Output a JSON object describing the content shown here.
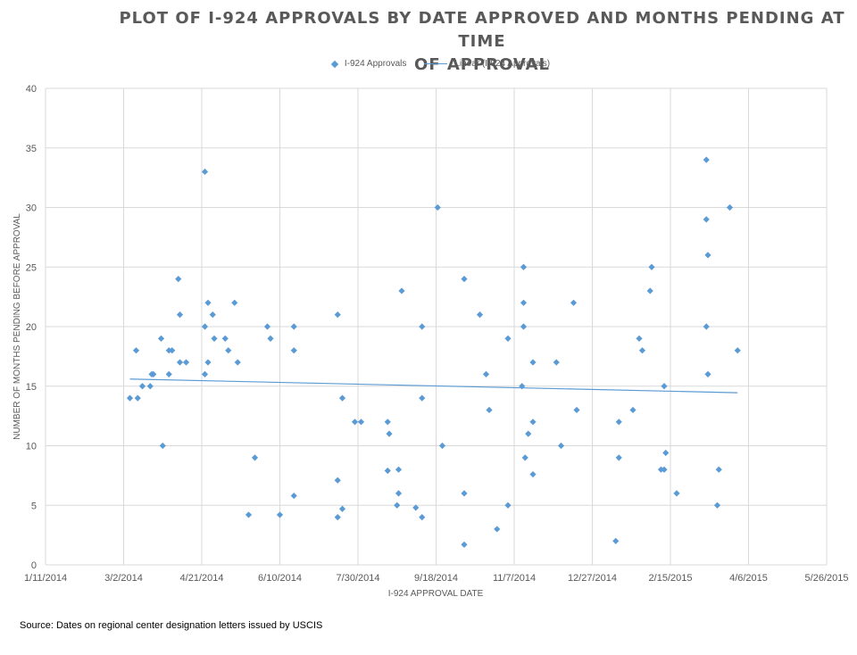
{
  "chart_data": {
    "type": "scatter",
    "title": "PLOT OF I-924 APPROVALS BY DATE APPROVED AND MONTHS PENDING AT TIME OF APPROVAL",
    "title_lines": [
      "PLOT OF I-924 APPROVALS BY DATE APPROVED AND MONTHS PENDING AT TIME",
      "OF APPROVAL"
    ],
    "xlabel": "I-924 APPROVAL DATE",
    "ylabel": "NUMBER OF MONTHS PENDING BEFORE APPROVAL",
    "x_unit": "days since 1/11/2014",
    "xlim": [
      0,
      500
    ],
    "ylim": [
      0,
      40
    ],
    "x_tick_values": [
      0,
      50,
      100,
      150,
      200,
      250,
      300,
      350,
      400,
      450,
      500
    ],
    "x_tick_labels": [
      "1/11/2014",
      "3/2/2014",
      "4/21/2014",
      "6/10/2014",
      "7/30/2014",
      "9/18/2014",
      "11/7/2014",
      "12/27/2014",
      "2/15/2015",
      "4/6/2015",
      "5/26/2015"
    ],
    "y_ticks": [
      0,
      5,
      10,
      15,
      20,
      25,
      30,
      35,
      40
    ],
    "grid": true,
    "legend_position": "top",
    "legend": [
      "I-924 Approvals",
      "Linear (I-924 Approvals)"
    ],
    "series": [
      {
        "name": "I-924 Approvals",
        "color": "#5b9bd5",
        "points": [
          [
            54,
            14
          ],
          [
            58,
            18
          ],
          [
            59,
            14
          ],
          [
            62,
            15
          ],
          [
            67,
            15
          ],
          [
            68,
            16
          ],
          [
            69,
            16
          ],
          [
            74,
            19
          ],
          [
            75,
            10
          ],
          [
            79,
            18
          ],
          [
            81,
            18
          ],
          [
            79,
            16
          ],
          [
            85,
            24
          ],
          [
            86,
            21
          ],
          [
            86,
            17
          ],
          [
            90,
            17
          ],
          [
            102,
            33
          ],
          [
            102,
            16
          ],
          [
            102,
            20
          ],
          [
            104,
            22
          ],
          [
            104,
            17
          ],
          [
            107,
            21
          ],
          [
            108,
            19
          ],
          [
            115,
            19
          ],
          [
            117,
            18
          ],
          [
            121,
            22
          ],
          [
            123,
            17
          ],
          [
            130,
            4.2
          ],
          [
            134,
            9
          ],
          [
            142,
            20
          ],
          [
            144,
            19
          ],
          [
            150,
            4.2
          ],
          [
            159,
            20
          ],
          [
            159,
            18
          ],
          [
            159,
            5.8
          ],
          [
            187,
            21
          ],
          [
            187,
            7.1
          ],
          [
            187,
            4
          ],
          [
            190,
            14
          ],
          [
            190,
            4.7
          ],
          [
            198,
            12
          ],
          [
            202,
            12
          ],
          [
            219,
            12
          ],
          [
            220,
            11
          ],
          [
            219,
            7.9
          ],
          [
            226,
            8
          ],
          [
            226,
            6
          ],
          [
            225,
            5
          ],
          [
            228,
            23
          ],
          [
            237,
            4.8
          ],
          [
            241,
            20
          ],
          [
            241,
            14
          ],
          [
            241,
            4
          ],
          [
            251,
            30
          ],
          [
            254,
            10
          ],
          [
            268,
            24
          ],
          [
            268,
            6
          ],
          [
            268,
            1.7
          ],
          [
            278,
            21
          ],
          [
            282,
            16
          ],
          [
            284,
            13
          ],
          [
            289,
            3
          ],
          [
            296,
            19
          ],
          [
            296,
            5
          ],
          [
            306,
            25
          ],
          [
            306,
            22
          ],
          [
            306,
            20
          ],
          [
            305,
            15
          ],
          [
            307,
            9
          ],
          [
            309,
            11
          ],
          [
            312,
            17
          ],
          [
            312,
            12
          ],
          [
            312,
            7.6
          ],
          [
            327,
            17
          ],
          [
            330,
            10
          ],
          [
            338,
            22
          ],
          [
            340,
            13
          ],
          [
            365,
            2
          ],
          [
            367,
            12
          ],
          [
            367,
            9
          ],
          [
            376,
            13
          ],
          [
            380,
            19
          ],
          [
            382,
            18
          ],
          [
            387,
            23
          ],
          [
            388,
            25
          ],
          [
            394,
            8
          ],
          [
            396,
            8
          ],
          [
            396,
            15
          ],
          [
            397,
            9.4
          ],
          [
            404,
            6
          ],
          [
            423,
            34
          ],
          [
            423,
            29
          ],
          [
            423,
            20
          ],
          [
            424,
            26
          ],
          [
            424,
            16
          ],
          [
            430,
            5
          ],
          [
            431,
            8
          ],
          [
            438,
            30
          ],
          [
            443,
            18
          ]
        ]
      },
      {
        "name": "Linear (I-924 Approvals)",
        "type": "trendline",
        "color": "#5b9bd5",
        "points": [
          [
            54,
            15.6
          ],
          [
            443,
            14.45
          ]
        ]
      }
    ]
  },
  "source_note": "Source: Dates on regional center designation letters issued by USCIS"
}
